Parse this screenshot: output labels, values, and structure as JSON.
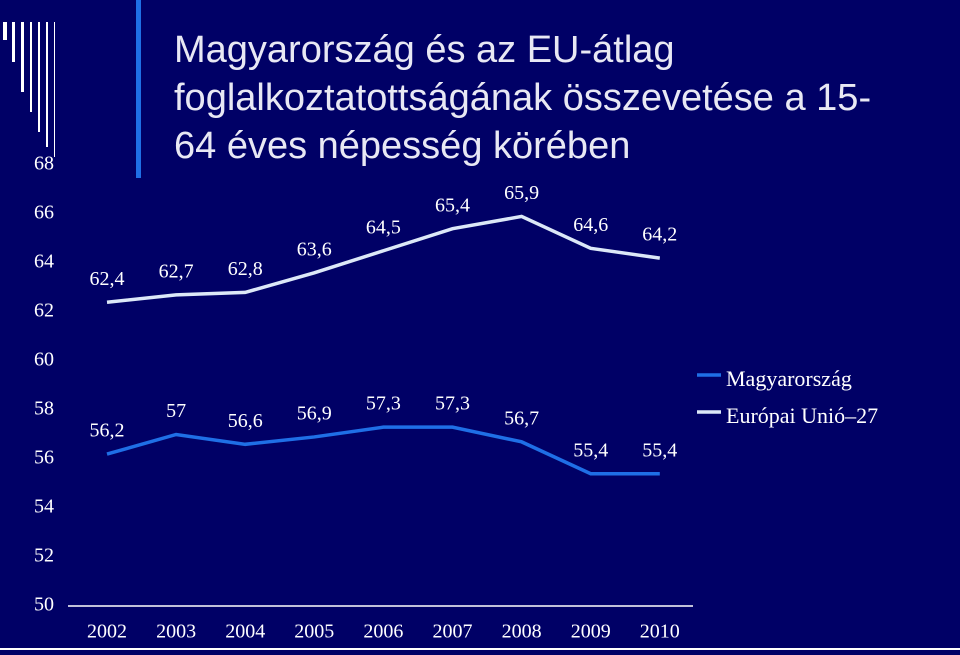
{
  "chart_data": {
    "type": "line",
    "title": [
      "Magyarország és az EU-átlag",
      "foglalkoztatottságának összevetése a 15-",
      "64 éves népesség körében"
    ],
    "categories": [
      "2002",
      "2003",
      "2004",
      "2005",
      "2006",
      "2007",
      "2008",
      "2009",
      "2010"
    ],
    "series": [
      {
        "name": "Magyarország",
        "color": "#1f6fe6",
        "values": [
          56.2,
          57,
          56.6,
          56.9,
          57.3,
          57.3,
          56.7,
          55.4,
          55.4
        ],
        "value_labels": [
          "56,2",
          "57",
          "56,6",
          "56,9",
          "57,3",
          "57,3",
          "56,7",
          "55,4",
          "55,4"
        ]
      },
      {
        "name": "Európai Unió–27",
        "color": "#dce8f8",
        "values": [
          62.4,
          62.7,
          62.8,
          63.6,
          64.5,
          65.4,
          65.9,
          64.6,
          64.2
        ],
        "value_labels": [
          "62,4",
          "62,7",
          "62,8",
          "63,6",
          "64,5",
          "65,4",
          "65,9",
          "64,6",
          "64,2"
        ]
      }
    ],
    "ylim": [
      50,
      68
    ],
    "yticks": [
      50,
      52,
      54,
      56,
      58,
      60,
      62,
      64,
      66,
      68
    ],
    "legend": "right"
  }
}
